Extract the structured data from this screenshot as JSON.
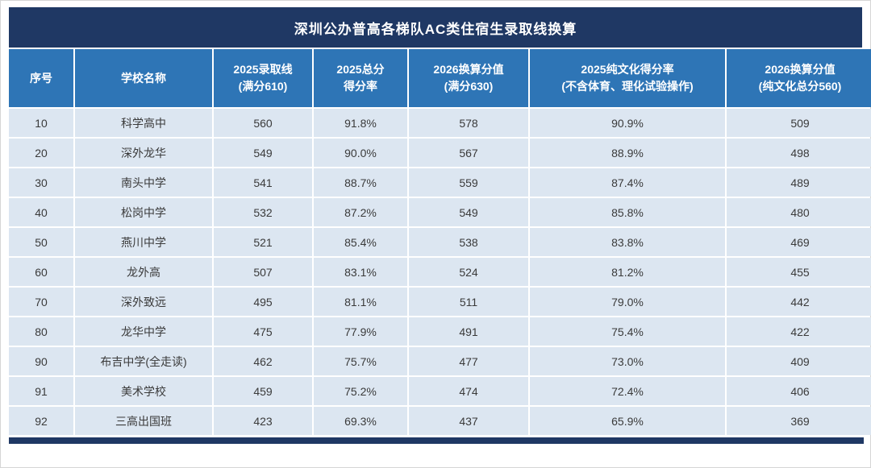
{
  "title": "深圳公办普高各梯队AC类住宿生录取线换算",
  "colors": {
    "title_bg": "#1f3864",
    "header_bg": "#2e75b6",
    "row_bg": "#dce6f1",
    "footer_bg": "#1f3864",
    "header_text": "#ffffff"
  },
  "table": {
    "headers": [
      {
        "line1": "序号",
        "line2": ""
      },
      {
        "line1": "学校名称",
        "line2": ""
      },
      {
        "line1": "2025录取线",
        "line2": "(满分610)"
      },
      {
        "line1": "2025总分",
        "line2": "得分率"
      },
      {
        "line1": "2026换算分值",
        "line2": "(满分630)"
      },
      {
        "line1": "2025纯文化得分率",
        "line2": "(不含体育、理化试验操作)"
      },
      {
        "line1": "2026换算分值",
        "line2": "(纯文化总分560)"
      }
    ]
  },
  "chart_data": {
    "type": "table",
    "title": "深圳公办普高各梯队AC类住宿生录取线换算",
    "columns": [
      "序号",
      "学校名称",
      "2025录取线(满分610)",
      "2025总分得分率",
      "2026换算分值(满分630)",
      "2025纯文化得分率(不含体育、理化试验操作)",
      "2026换算分值(纯文化总分560)"
    ],
    "rows": [
      [
        "10",
        "科学高中",
        "560",
        "91.8%",
        "578",
        "90.9%",
        "509"
      ],
      [
        "20",
        "深外龙华",
        "549",
        "90.0%",
        "567",
        "88.9%",
        "498"
      ],
      [
        "30",
        "南头中学",
        "541",
        "88.7%",
        "559",
        "87.4%",
        "489"
      ],
      [
        "40",
        "松岗中学",
        "532",
        "87.2%",
        "549",
        "85.8%",
        "480"
      ],
      [
        "50",
        "燕川中学",
        "521",
        "85.4%",
        "538",
        "83.8%",
        "469"
      ],
      [
        "60",
        "龙外高",
        "507",
        "83.1%",
        "524",
        "81.2%",
        "455"
      ],
      [
        "70",
        "深外致远",
        "495",
        "81.1%",
        "511",
        "79.0%",
        "442"
      ],
      [
        "80",
        "龙华中学",
        "475",
        "77.9%",
        "491",
        "75.4%",
        "422"
      ],
      [
        "90",
        "布吉中学(全走读)",
        "462",
        "75.7%",
        "477",
        "73.0%",
        "409"
      ],
      [
        "91",
        "美术学校",
        "459",
        "75.2%",
        "474",
        "72.4%",
        "406"
      ],
      [
        "92",
        "三高出国班",
        "423",
        "69.3%",
        "437",
        "65.9%",
        "369"
      ]
    ]
  }
}
